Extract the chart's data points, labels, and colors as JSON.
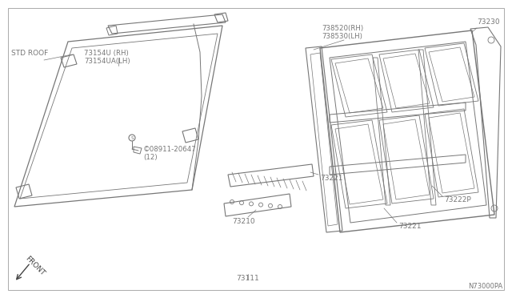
{
  "background_color": "#ffffff",
  "line_color": "#777777",
  "text_color": "#777777",
  "diagram_code": "N73000PA",
  "labels": {
    "std_roof": "STD ROOF",
    "73154U": "73154U (RH)\n73154UA(LH)",
    "73111": "73111",
    "73210": "73210",
    "73221": "73221",
    "73222P": "73222P",
    "73230": "73230",
    "738520": "738520(RH)\n738530(LH)",
    "screw": "©08911-20647\n(12)"
  },
  "border": [
    10,
    10,
    620,
    352
  ],
  "front_label": "FRONT"
}
